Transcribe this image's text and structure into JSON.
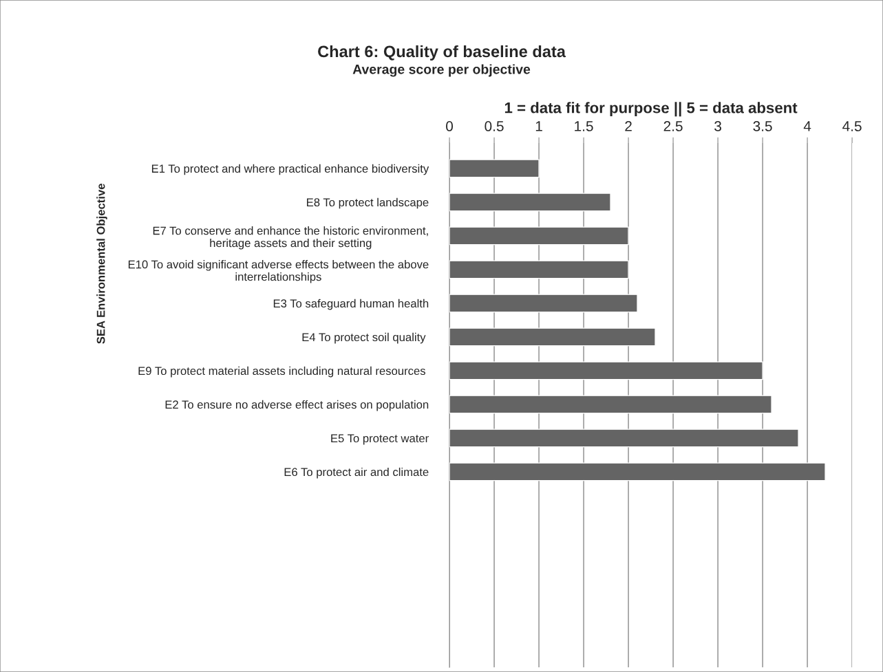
{
  "chart_data": {
    "type": "bar",
    "orientation": "horizontal",
    "title": "Chart 6: Quality of baseline data",
    "subtitle": "Average score per objective",
    "xlabel": "1 = data fit for purpose || 5 = data absent",
    "ylabel": "SEA Environmental Objective",
    "categories": [
      "E1 To protect and where practical enhance biodiversity",
      "E8 To protect landscape",
      "E7 To conserve and enhance the historic environment,\nheritage assets and their setting",
      "E10 To avoid significant adverse effects between the above\ninterrelationships",
      "E3 To safeguard human health",
      "E4 To protect soil quality ",
      "E9 To protect material assets including natural resources ",
      "E2 To ensure no adverse effect arises on population",
      "E5 To protect water",
      "E6 To protect air and climate"
    ],
    "values": [
      1,
      1.8,
      2,
      2,
      2.1,
      2.3,
      3.5,
      3.6,
      3.9,
      4.2
    ],
    "color": "#646464",
    "xlim": [
      0,
      4.5
    ],
    "xticks": [
      0,
      0.5,
      1,
      1.5,
      2,
      2.5,
      3,
      3.5,
      4,
      4.5
    ],
    "grid": "x",
    "legend": false
  }
}
